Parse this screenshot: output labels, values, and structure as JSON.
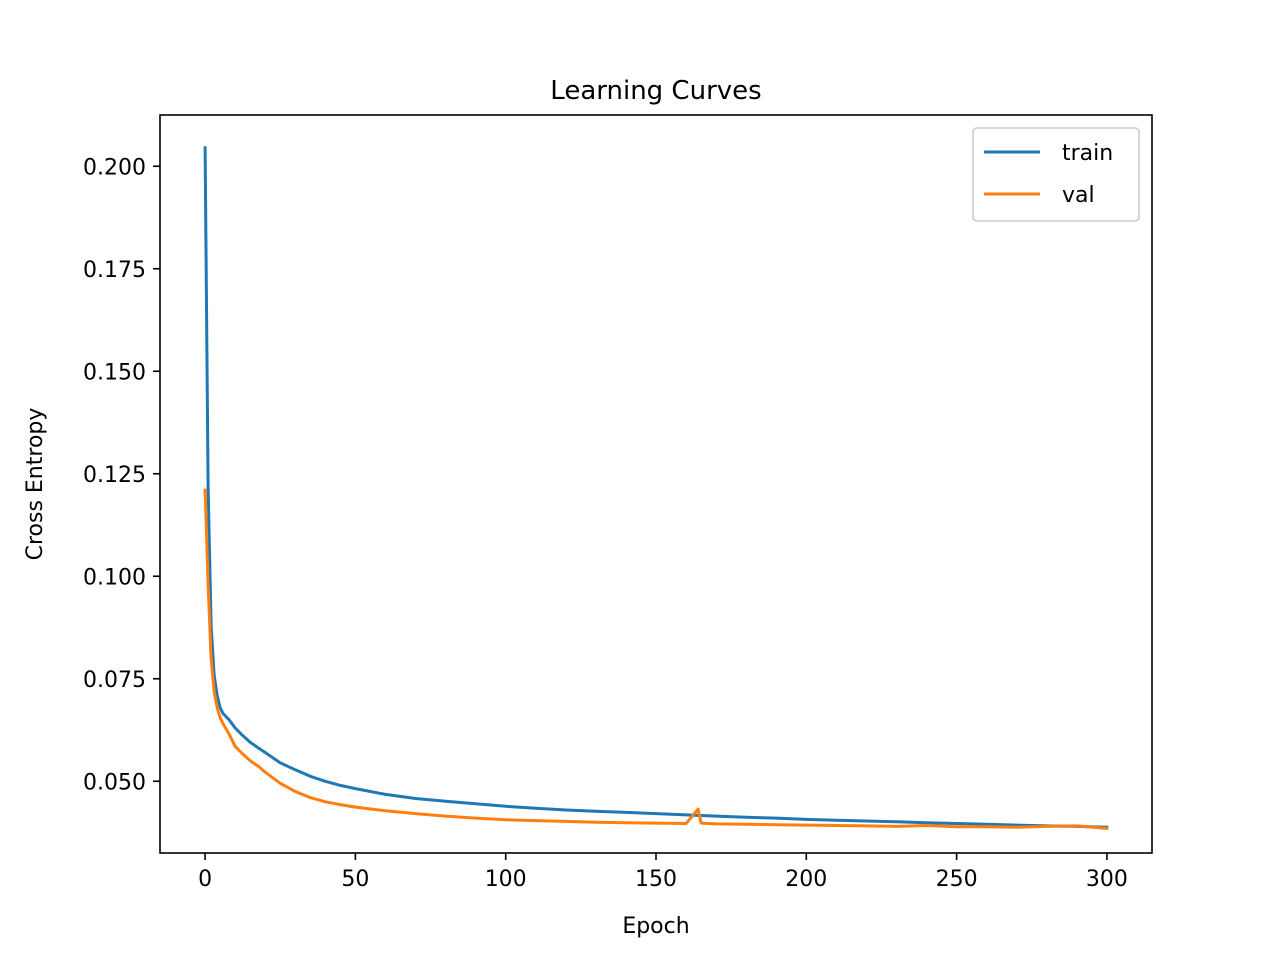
{
  "chart_data": {
    "type": "line",
    "title": "Learning Curves",
    "xlabel": "Epoch",
    "ylabel": "Cross Entropy",
    "xlim": [
      -15,
      315
    ],
    "ylim": [
      0.0325,
      0.2125
    ],
    "xticks": [
      0,
      50,
      100,
      150,
      200,
      250,
      300
    ],
    "xtick_labels": [
      "0",
      "50",
      "100",
      "150",
      "200",
      "250",
      "300"
    ],
    "yticks": [
      0.05,
      0.075,
      0.1,
      0.125,
      0.15,
      0.175,
      0.2
    ],
    "ytick_labels": [
      "0.050",
      "0.075",
      "0.100",
      "0.125",
      "0.150",
      "0.175",
      "0.200"
    ],
    "grid": false,
    "legend": "top-right",
    "series": [
      {
        "name": "train",
        "color": "#1f77b4",
        "x": [
          0,
          1,
          2,
          3,
          4,
          5,
          6,
          8,
          10,
          12,
          15,
          18,
          20,
          25,
          30,
          35,
          40,
          45,
          50,
          60,
          70,
          80,
          90,
          100,
          110,
          120,
          130,
          140,
          150,
          160,
          170,
          180,
          190,
          200,
          210,
          220,
          230,
          240,
          250,
          260,
          270,
          280,
          290,
          300
        ],
        "values": [
          0.2045,
          0.122,
          0.088,
          0.076,
          0.071,
          0.068,
          0.0665,
          0.065,
          0.063,
          0.0615,
          0.0595,
          0.058,
          0.057,
          0.0545,
          0.0528,
          0.0512,
          0.05,
          0.049,
          0.0482,
          0.0468,
          0.0458,
          0.0451,
          0.0445,
          0.0439,
          0.0434,
          0.043,
          0.0427,
          0.0424,
          0.0421,
          0.0418,
          0.0415,
          0.0412,
          0.041,
          0.0407,
          0.0405,
          0.0403,
          0.0401,
          0.0399,
          0.0397,
          0.0395,
          0.0393,
          0.0391,
          0.039,
          0.0388
        ]
      },
      {
        "name": "val",
        "color": "#ff7f0e",
        "x": [
          0,
          1,
          2,
          3,
          4,
          5,
          6,
          8,
          10,
          12,
          15,
          18,
          20,
          25,
          30,
          35,
          40,
          45,
          50,
          60,
          70,
          80,
          90,
          100,
          110,
          120,
          130,
          140,
          150,
          160,
          164,
          165,
          170,
          180,
          190,
          200,
          210,
          220,
          230,
          240,
          250,
          260,
          270,
          280,
          290,
          300
        ],
        "values": [
          0.121,
          0.098,
          0.08,
          0.072,
          0.068,
          0.0655,
          0.064,
          0.0615,
          0.0585,
          0.057,
          0.055,
          0.0535,
          0.0522,
          0.0495,
          0.0475,
          0.046,
          0.045,
          0.0443,
          0.0437,
          0.0428,
          0.0421,
          0.0415,
          0.041,
          0.0406,
          0.0404,
          0.0402,
          0.04,
          0.0399,
          0.0398,
          0.0397,
          0.0432,
          0.0398,
          0.0396,
          0.0395,
          0.0394,
          0.0393,
          0.0392,
          0.0391,
          0.039,
          0.0392,
          0.0389,
          0.0389,
          0.0388,
          0.039,
          0.0391,
          0.0385
        ]
      }
    ]
  }
}
